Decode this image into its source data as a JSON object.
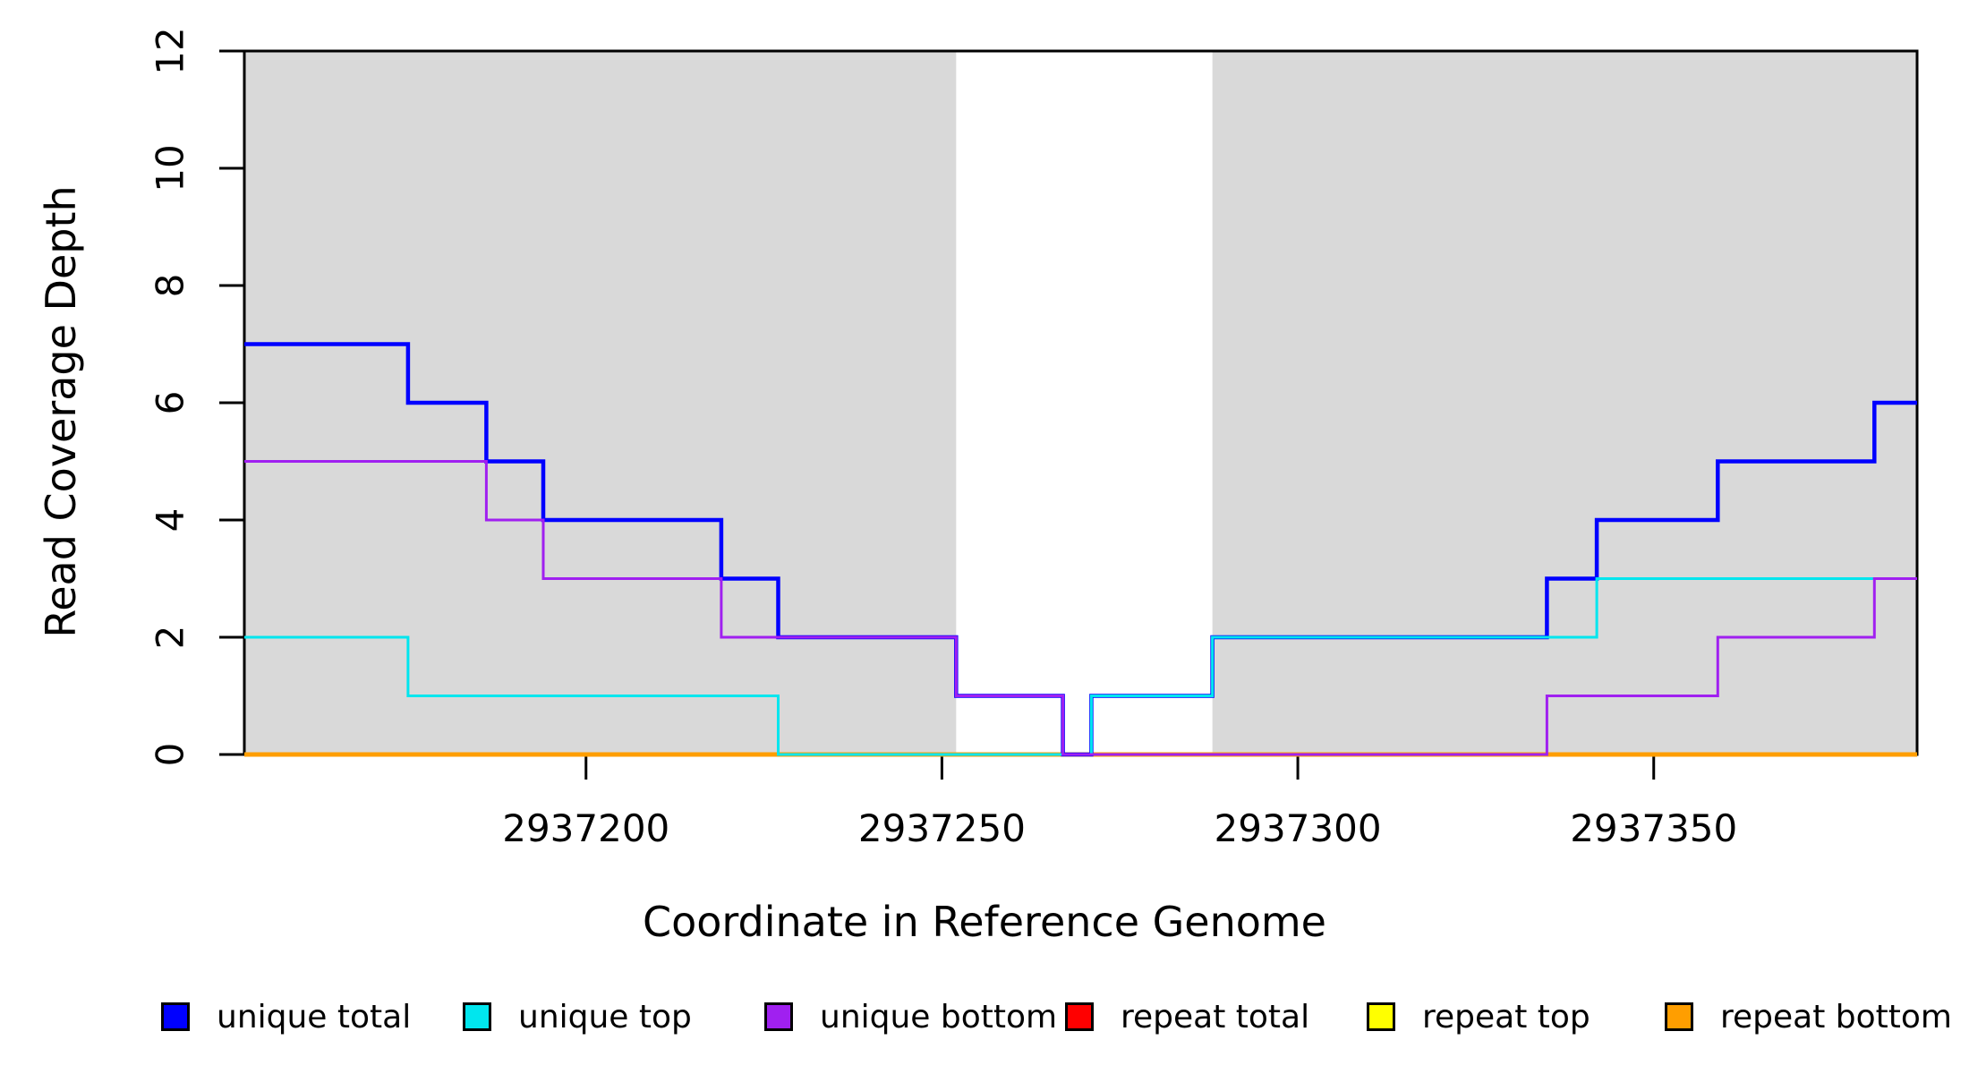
{
  "chart_data": {
    "type": "line",
    "subtype": "step",
    "title": "",
    "xlabel": "Coordinate in Reference Genome",
    "ylabel": "Read Coverage Depth",
    "xlim": [
      2937152,
      2937387
    ],
    "ylim": [
      0,
      12
    ],
    "x_ticks": [
      2937200,
      2937250,
      2937300,
      2937350
    ],
    "y_ticks": [
      0,
      2,
      4,
      6,
      8,
      10,
      12
    ],
    "grid": false,
    "background_color": "#FFFFFF",
    "plot_border_color": "#000000",
    "shaded_regions": [
      {
        "x0": 2937152,
        "x1": 2937252,
        "color": "#D9D9D9"
      },
      {
        "x0": 2937288,
        "x1": 2937387,
        "color": "#D9D9D9"
      }
    ],
    "series": [
      {
        "name": "unique total",
        "color": "#0000FF",
        "line_width": 4.5,
        "steps": [
          [
            2937152,
            7
          ],
          [
            2937175,
            6
          ],
          [
            2937186,
            5
          ],
          [
            2937194,
            4
          ],
          [
            2937219,
            3
          ],
          [
            2937227,
            2
          ],
          [
            2937252,
            1
          ],
          [
            2937267,
            0
          ],
          [
            2937271,
            1
          ],
          [
            2937288,
            2
          ],
          [
            2937335,
            3
          ],
          [
            2937342,
            4
          ],
          [
            2937359,
            5
          ],
          [
            2937381,
            6
          ]
        ]
      },
      {
        "name": "unique top",
        "color": "#00E6EE",
        "line_width": 3,
        "steps": [
          [
            2937152,
            2
          ],
          [
            2937175,
            1
          ],
          [
            2937227,
            0
          ],
          [
            2937271,
            1
          ],
          [
            2937288,
            2
          ],
          [
            2937342,
            3
          ]
        ]
      },
      {
        "name": "unique bottom",
        "color": "#A020F0",
        "line_width": 3,
        "steps": [
          [
            2937152,
            5
          ],
          [
            2937186,
            4
          ],
          [
            2937194,
            3
          ],
          [
            2937219,
            2
          ],
          [
            2937252,
            1
          ],
          [
            2937267,
            0
          ],
          [
            2937335,
            1
          ],
          [
            2937359,
            2
          ],
          [
            2937381,
            3
          ]
        ]
      },
      {
        "name": "repeat total",
        "color": "#FF0000",
        "line_width": 3,
        "steps": [
          [
            2937152,
            0
          ]
        ]
      },
      {
        "name": "repeat top",
        "color": "#FFFF00",
        "line_width": 3,
        "steps": [
          [
            2937152,
            0
          ]
        ]
      },
      {
        "name": "repeat bottom",
        "color": "#FF9E00",
        "line_width": 5,
        "steps": [
          [
            2937152,
            0
          ]
        ]
      }
    ],
    "draw_order": [
      "repeat total",
      "repeat top",
      "repeat bottom",
      "unique total",
      "unique top",
      "unique bottom"
    ],
    "legend": {
      "position": "bottom",
      "entries": [
        "unique total",
        "unique top",
        "unique bottom",
        "repeat total",
        "repeat top",
        "repeat bottom"
      ]
    }
  }
}
